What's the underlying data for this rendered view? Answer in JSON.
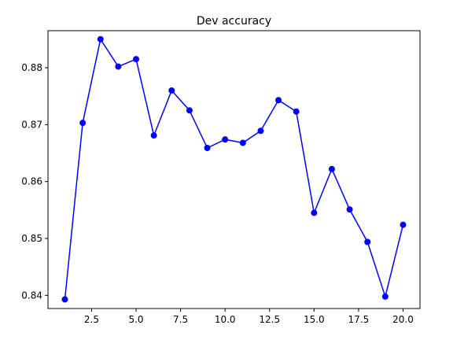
{
  "chart_data": {
    "type": "line",
    "title": "Dev accuracy",
    "xlabel": "",
    "ylabel": "",
    "xlim": [
      0.05,
      20.95
    ],
    "ylim": [
      0.8377,
      0.8865
    ],
    "xticks": [
      2.5,
      5.0,
      7.5,
      10.0,
      12.5,
      15.0,
      17.5,
      20.0
    ],
    "xtick_labels": [
      "2.5",
      "5.0",
      "7.5",
      "10.0",
      "12.5",
      "15.0",
      "17.5",
      "20.0"
    ],
    "yticks": [
      0.84,
      0.85,
      0.86,
      0.87,
      0.88
    ],
    "ytick_labels": [
      "0.84",
      "0.85",
      "0.86",
      "0.87",
      "0.88"
    ],
    "grid": false,
    "series": [
      {
        "color": "#0000ff",
        "marker": "circle",
        "x": [
          1,
          2,
          3,
          4,
          5,
          6,
          7,
          8,
          9,
          10,
          11,
          12,
          13,
          14,
          15,
          16,
          17,
          18,
          19,
          20
        ],
        "y": [
          0.8393,
          0.8703,
          0.885,
          0.8802,
          0.8815,
          0.8681,
          0.876,
          0.8725,
          0.8659,
          0.8674,
          0.8668,
          0.8689,
          0.8743,
          0.8723,
          0.8545,
          0.8622,
          0.8551,
          0.8494,
          0.8398,
          0.8524
        ]
      }
    ]
  }
}
